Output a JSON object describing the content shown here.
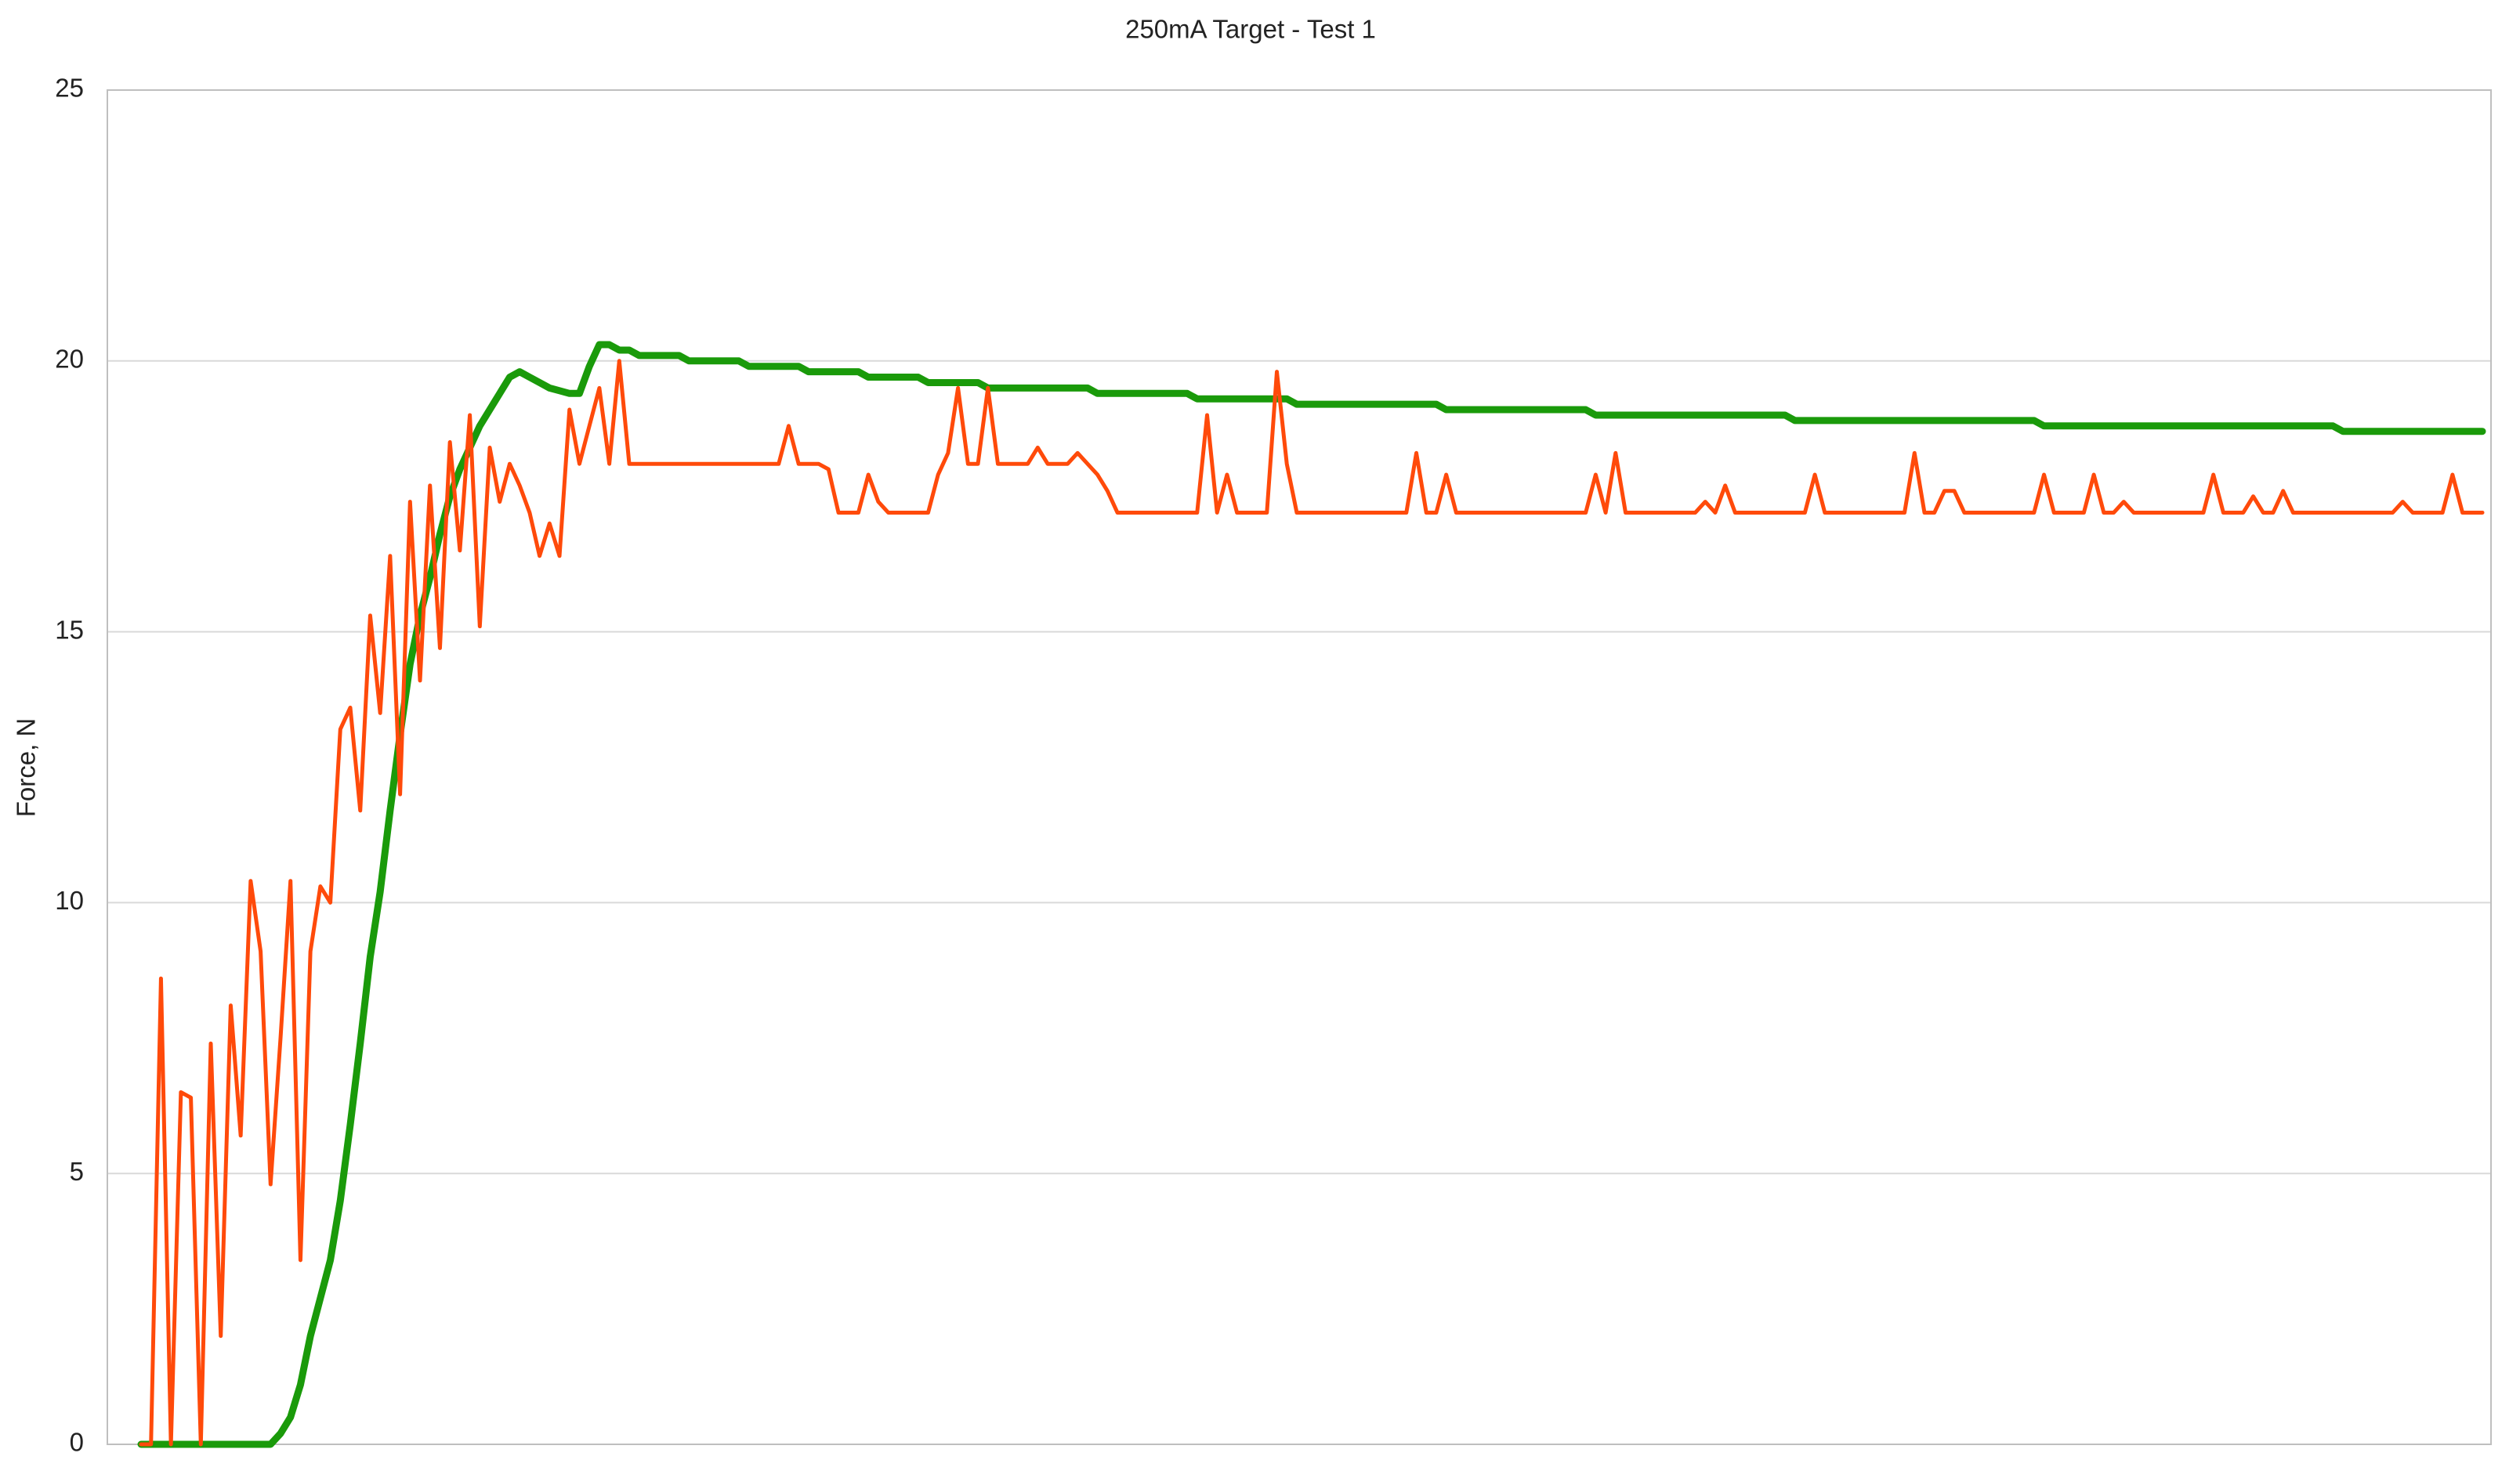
{
  "chart_data": {
    "type": "line",
    "title": "250mA Target - Test 1",
    "ylabel": "Force, N",
    "ylim": [
      0,
      25
    ],
    "yticks": [
      0,
      5,
      10,
      15,
      20,
      25
    ],
    "grid": true,
    "series": [
      {
        "color": "#1a9a0a",
        "values": [
          0,
          0,
          0,
          0,
          0,
          0,
          0,
          0,
          0,
          0,
          0,
          0,
          0,
          0,
          0.2,
          0.5,
          1.1,
          2.0,
          2.7,
          3.4,
          4.5,
          5.9,
          7.4,
          9.0,
          10.2,
          11.7,
          13.1,
          14.4,
          15.3,
          16.0,
          16.8,
          17.5,
          18.0,
          18.4,
          18.8,
          19.1,
          19.4,
          19.7,
          19.8,
          19.7,
          19.6,
          19.5,
          19.45,
          19.4,
          19.4,
          19.9,
          20.3,
          20.3,
          20.2,
          20.2,
          20.1,
          20.1,
          20.1,
          20.1,
          20.1,
          20.0,
          20.0,
          20.0,
          20.0,
          20.0,
          20.0,
          19.9,
          19.9,
          19.9,
          19.9,
          19.9,
          19.9,
          19.8,
          19.8,
          19.8,
          19.8,
          19.8,
          19.8,
          19.7,
          19.7,
          19.7,
          19.7,
          19.7,
          19.7,
          19.6,
          19.6,
          19.6,
          19.6,
          19.6,
          19.6,
          19.5,
          19.5,
          19.5,
          19.5,
          19.5,
          19.5,
          19.5,
          19.5,
          19.5,
          19.5,
          19.5,
          19.4,
          19.4,
          19.4,
          19.4,
          19.4,
          19.4,
          19.4,
          19.4,
          19.4,
          19.4,
          19.3,
          19.3,
          19.3,
          19.3,
          19.3,
          19.3,
          19.3,
          19.3,
          19.3,
          19.3,
          19.2,
          19.2,
          19.2,
          19.2,
          19.2,
          19.2,
          19.2,
          19.2,
          19.2,
          19.2,
          19.2,
          19.2,
          19.2,
          19.2,
          19.2,
          19.1,
          19.1,
          19.1,
          19.1,
          19.1,
          19.1,
          19.1,
          19.1,
          19.1,
          19.1,
          19.1,
          19.1,
          19.1,
          19.1,
          19.1,
          19.0,
          19.0,
          19.0,
          19.0,
          19.0,
          19.0,
          19.0,
          19.0,
          19.0,
          19.0,
          19.0,
          19.0,
          19.0,
          19.0,
          19.0,
          19.0,
          19.0,
          19.0,
          19.0,
          19.0,
          18.9,
          18.9,
          18.9,
          18.9,
          18.9,
          18.9,
          18.9,
          18.9,
          18.9,
          18.9,
          18.9,
          18.9,
          18.9,
          18.9,
          18.9,
          18.9,
          18.9,
          18.9,
          18.9,
          18.9,
          18.9,
          18.9,
          18.9,
          18.9,
          18.9,
          18.8,
          18.8,
          18.8,
          18.8,
          18.8,
          18.8,
          18.8,
          18.8,
          18.8,
          18.8,
          18.8,
          18.8,
          18.8,
          18.8,
          18.8,
          18.8,
          18.8,
          18.8,
          18.8,
          18.8,
          18.8,
          18.8,
          18.8,
          18.8,
          18.8,
          18.8,
          18.8,
          18.8,
          18.8,
          18.8,
          18.7,
          18.7,
          18.7,
          18.7,
          18.7,
          18.7,
          18.7,
          18.7,
          18.7,
          18.7,
          18.7,
          18.7,
          18.7,
          18.7,
          18.7
        ]
      },
      {
        "color": "#ff4a0a",
        "values": [
          0,
          0,
          8.6,
          0,
          6.5,
          6.4,
          0,
          7.4,
          2.0,
          8.1,
          5.7,
          10.4,
          9.1,
          4.8,
          7.5,
          10.4,
          3.4,
          9.1,
          10.3,
          10.0,
          13.2,
          13.6,
          11.7,
          15.3,
          13.5,
          16.4,
          12.0,
          17.4,
          14.1,
          17.7,
          14.7,
          18.5,
          16.5,
          19.0,
          15.1,
          18.4,
          17.4,
          18.1,
          17.7,
          17.2,
          16.4,
          17.0,
          16.4,
          19.1,
          18.1,
          18.8,
          19.5,
          18.1,
          20.0,
          18.1,
          18.1,
          18.1,
          18.1,
          18.1,
          18.1,
          18.1,
          18.1,
          18.1,
          18.1,
          18.1,
          18.1,
          18.1,
          18.1,
          18.1,
          18.1,
          18.8,
          18.1,
          18.1,
          18.1,
          18.0,
          17.2,
          17.2,
          17.2,
          17.9,
          17.4,
          17.2,
          17.2,
          17.2,
          17.2,
          17.2,
          17.9,
          18.3,
          19.5,
          18.1,
          18.1,
          19.5,
          18.1,
          18.1,
          18.1,
          18.1,
          18.4,
          18.1,
          18.1,
          18.1,
          18.3,
          18.1,
          17.9,
          17.6,
          17.2,
          17.2,
          17.2,
          17.2,
          17.2,
          17.2,
          17.2,
          17.2,
          17.2,
          19.0,
          17.2,
          17.9,
          17.2,
          17.2,
          17.2,
          17.2,
          19.8,
          18.1,
          17.2,
          17.2,
          17.2,
          17.2,
          17.2,
          17.2,
          17.2,
          17.2,
          17.2,
          17.2,
          17.2,
          17.2,
          18.3,
          17.2,
          17.2,
          17.9,
          17.2,
          17.2,
          17.2,
          17.2,
          17.2,
          17.2,
          17.2,
          17.2,
          17.2,
          17.2,
          17.2,
          17.2,
          17.2,
          17.2,
          17.9,
          17.2,
          18.3,
          17.2,
          17.2,
          17.2,
          17.2,
          17.2,
          17.2,
          17.2,
          17.2,
          17.4,
          17.2,
          17.7,
          17.2,
          17.2,
          17.2,
          17.2,
          17.2,
          17.2,
          17.2,
          17.2,
          17.9,
          17.2,
          17.2,
          17.2,
          17.2,
          17.2,
          17.2,
          17.2,
          17.2,
          17.2,
          18.3,
          17.2,
          17.2,
          17.6,
          17.6,
          17.2,
          17.2,
          17.2,
          17.2,
          17.2,
          17.2,
          17.2,
          17.2,
          17.9,
          17.2,
          17.2,
          17.2,
          17.2,
          17.9,
          17.2,
          17.2,
          17.4,
          17.2,
          17.2,
          17.2,
          17.2,
          17.2,
          17.2,
          17.2,
          17.2,
          17.9,
          17.2,
          17.2,
          17.2,
          17.5,
          17.2,
          17.2,
          17.6,
          17.2,
          17.2,
          17.2,
          17.2,
          17.2,
          17.2,
          17.2,
          17.2,
          17.2,
          17.2,
          17.2,
          17.4,
          17.2,
          17.2,
          17.2,
          17.2,
          17.9,
          17.2,
          17.2,
          17.2
        ]
      }
    ]
  }
}
